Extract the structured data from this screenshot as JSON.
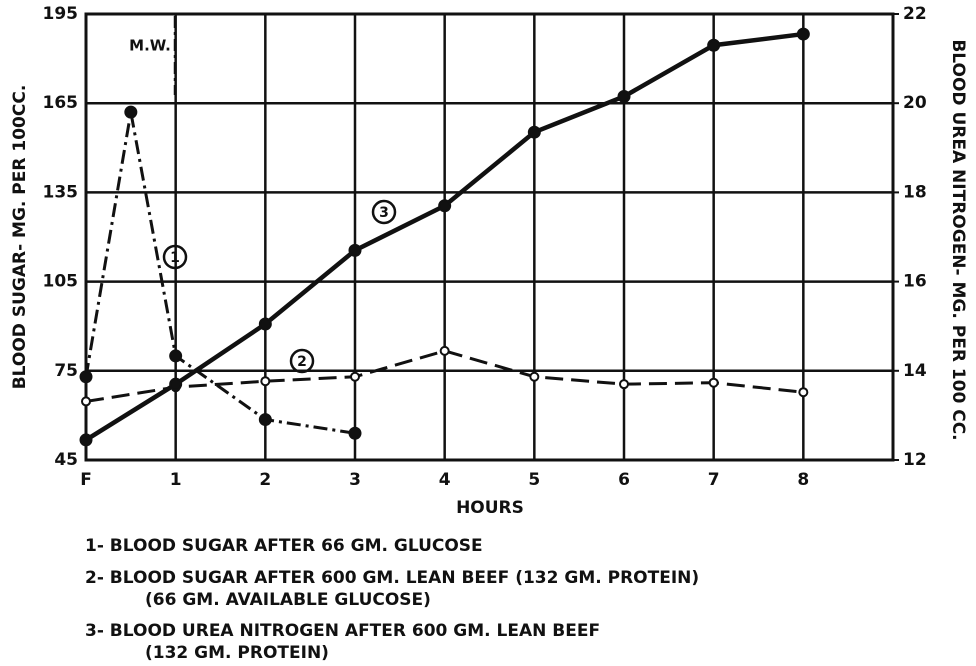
{
  "chart_data": {
    "type": "line",
    "x_label": "HOURS",
    "y_label": "BLOOD SUGAR- MG. PER 100CC.",
    "y2_label": "BLOOD UREA NITROGEN- MG. PER 100 CC.",
    "annotation": "M.W.",
    "xlim": [
      0,
      9
    ],
    "xticks": [
      {
        "value": 0,
        "label": "F"
      },
      1,
      2,
      3,
      4,
      5,
      6,
      7,
      8
    ],
    "ylim": [
      45,
      195
    ],
    "yticks": [
      45,
      75,
      105,
      135,
      165,
      195
    ],
    "y2lim": [
      12,
      22
    ],
    "y2ticks": [
      12,
      14,
      16,
      18,
      20,
      22
    ],
    "grid": true,
    "series": [
      {
        "label": "1",
        "color": "#111",
        "line_style": "dash-dot",
        "marker": "filled",
        "x": [
          0,
          0.5,
          1,
          2,
          3
        ],
        "values": [
          73,
          162,
          80,
          58.6,
          54
        ]
      },
      {
        "label": "2",
        "color": "#111",
        "line_style": "dashed",
        "marker": "open",
        "x": [
          0,
          1,
          2,
          3,
          4,
          5,
          6,
          7,
          8
        ],
        "values": [
          64.7,
          69.5,
          71.5,
          73,
          81.7,
          73,
          70.5,
          71,
          67.8
        ]
      },
      {
        "label": "3",
        "color": "#111",
        "line_style": "solid",
        "marker": "filled",
        "axis": "y2",
        "x": [
          0,
          1,
          2,
          3,
          4,
          5,
          6,
          7,
          8
        ],
        "values": [
          12.45,
          13.7,
          15.05,
          16.7,
          17.7,
          19.35,
          20.15,
          21.3,
          21.55
        ]
      }
    ],
    "legend": [
      "1- BLOOD SUGAR AFTER 66 GM. GLUCOSE",
      "2- BLOOD SUGAR AFTER 600 GM. LEAN BEEF (132 GM. PROTEIN)",
      "(66 GM. AVAILABLE GLUCOSE)",
      "3- BLOOD UREA NITROGEN AFTER 600 GM. LEAN BEEF",
      "(132 GM. PROTEIN)"
    ]
  }
}
